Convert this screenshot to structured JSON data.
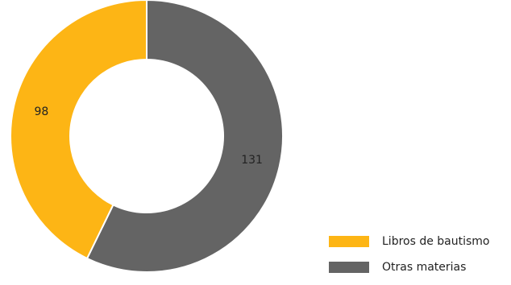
{
  "chart_data": {
    "type": "pie",
    "title": "",
    "categories": [
      "Libros de bautismo",
      "Otras materias"
    ],
    "values": [
      98,
      131
    ],
    "colors": [
      "#FDB515",
      "#646464"
    ],
    "data_labels": [
      "98",
      "131"
    ],
    "legend_position": "bottom-right",
    "donut": true
  },
  "legend": {
    "items": [
      {
        "label": "Libros de bautismo",
        "color": "#FDB515"
      },
      {
        "label": "Otras materias",
        "color": "#646464"
      }
    ]
  }
}
